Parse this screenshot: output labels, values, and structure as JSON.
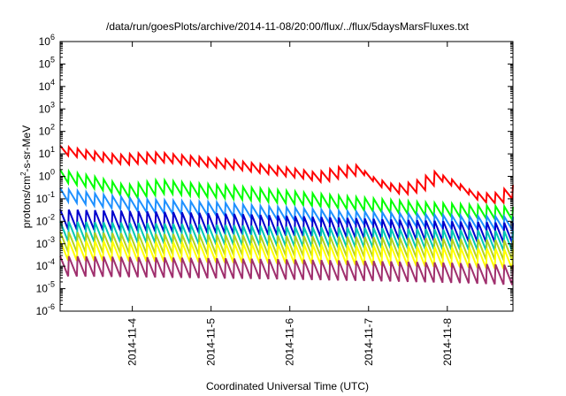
{
  "chart_data": {
    "type": "line",
    "title": "/data/run/goesPlots/archive/2014-11-08/20:00/flux/../flux/5daysMarsFluxes.txt",
    "xlabel": "Coordinated Universal Time (UTC)",
    "ylabel": {
      "pre": "protons/cm",
      "sup": "2",
      "post": "-s-sr-MeV"
    },
    "x_range": [
      "2014-11-03T02:00",
      "2014-11-08T20:00"
    ],
    "x_ticks": [
      "2014-11-4",
      "2014-11-5",
      "2014-11-6",
      "2014-11-7",
      "2014-11-8"
    ],
    "y_scale": "log",
    "ylim": [
      1e-06,
      1000000.0
    ],
    "y_ticks": [
      {
        "base": "10",
        "exp": "-6"
      },
      {
        "base": "10",
        "exp": "-5"
      },
      {
        "base": "10",
        "exp": "-4"
      },
      {
        "base": "10",
        "exp": "-3"
      },
      {
        "base": "10",
        "exp": "-2"
      },
      {
        "base": "10",
        "exp": "-1"
      },
      {
        "base": "10",
        "exp": "0"
      },
      {
        "base": "10",
        "exp": "1"
      },
      {
        "base": "10",
        "exp": "2"
      },
      {
        "base": "10",
        "exp": "3"
      },
      {
        "base": "10",
        "exp": "4"
      },
      {
        "base": "10",
        "exp": "5"
      },
      {
        "base": "10",
        "exp": "6"
      }
    ],
    "grid": false,
    "legend": "none",
    "series": [
      {
        "color": "#ff0000",
        "x": [
          "2014-11-03T02:00",
          "2014-11-03T08:00",
          "2014-11-03T14:00",
          "2014-11-03T20:00",
          "2014-11-04T02:00",
          "2014-11-04T08:00",
          "2014-11-04T14:00",
          "2014-11-04T20:00",
          "2014-11-05T02:00",
          "2014-11-05T08:00",
          "2014-11-05T14:00",
          "2014-11-05T20:00",
          "2014-11-06T02:00",
          "2014-11-06T08:00",
          "2014-11-06T14:00",
          "2014-11-06T20:00",
          "2014-11-07T02:00",
          "2014-11-07T08:00",
          "2014-11-07T14:00",
          "2014-11-07T20:00",
          "2014-11-08T02:00",
          "2014-11-08T08:00",
          "2014-11-08T14:00",
          "2014-11-08T20:00"
        ],
        "y": [
          14,
          10,
          7,
          5.5,
          6.5,
          7,
          5.5,
          4.5,
          3.8,
          3,
          2.2,
          1.7,
          1.3,
          0.9,
          1.5,
          2,
          0.5,
          0.25,
          0.35,
          1,
          0.4,
          0.12,
          0.1,
          0.25
        ]
      },
      {
        "color": "#00ff00",
        "x": [
          "2014-11-03T02:00",
          "2014-11-03T12:00",
          "2014-11-03T22:00",
          "2014-11-04T08:00",
          "2014-11-04T18:00",
          "2014-11-05T04:00",
          "2014-11-05T14:00",
          "2014-11-06T00:00",
          "2014-11-06T10:00",
          "2014-11-06T20:00",
          "2014-11-07T06:00",
          "2014-11-07T16:00",
          "2014-11-08T02:00",
          "2014-11-08T12:00",
          "2014-11-08T20:00"
        ],
        "y": [
          1,
          0.5,
          0.2,
          0.35,
          0.25,
          0.2,
          0.15,
          0.11,
          0.08,
          0.06,
          0.045,
          0.035,
          0.03,
          0.025,
          0.022
        ]
      },
      {
        "color": "#1e90ff",
        "x": [
          "2014-11-03T02:00",
          "2014-11-03T14:00",
          "2014-11-04T02:00",
          "2014-11-04T14:00",
          "2014-11-05T02:00",
          "2014-11-05T14:00",
          "2014-11-06T02:00",
          "2014-11-06T14:00",
          "2014-11-07T02:00",
          "2014-11-07T14:00",
          "2014-11-08T02:00",
          "2014-11-08T20:00"
        ],
        "y": [
          0.15,
          0.08,
          0.05,
          0.04,
          0.035,
          0.025,
          0.02,
          0.015,
          0.013,
          0.011,
          0.009,
          0.008
        ]
      },
      {
        "color": "#0000cd",
        "x": [
          "2014-11-03T02:00",
          "2014-11-04T02:00",
          "2014-11-05T02:00",
          "2014-11-06T02:00",
          "2014-11-07T02:00",
          "2014-11-08T02:00",
          "2014-11-08T20:00"
        ],
        "y": [
          0.012,
          0.01,
          0.008,
          0.006,
          0.0045,
          0.0035,
          0.003
        ]
      },
      {
        "color": "#00c8b4",
        "x": [
          "2014-11-03T02:00",
          "2014-11-04T02:00",
          "2014-11-05T02:00",
          "2014-11-06T02:00",
          "2014-11-07T02:00",
          "2014-11-08T02:00",
          "2014-11-08T20:00"
        ],
        "y": [
          0.0035,
          0.003,
          0.0025,
          0.002,
          0.0018,
          0.0015,
          0.0013
        ]
      },
      {
        "color": "#b4d21e",
        "x": [
          "2014-11-03T02:00",
          "2014-11-04T02:00",
          "2014-11-05T02:00",
          "2014-11-06T02:00",
          "2014-11-07T02:00",
          "2014-11-08T02:00",
          "2014-11-08T20:00"
        ],
        "y": [
          0.0012,
          0.001,
          0.0009,
          0.0008,
          0.0007,
          0.0006,
          0.0005
        ]
      },
      {
        "color": "#ffff00",
        "x": [
          "2014-11-03T02:00",
          "2014-11-04T02:00",
          "2014-11-05T02:00",
          "2014-11-06T02:00",
          "2014-11-07T02:00",
          "2014-11-08T02:00",
          "2014-11-08T20:00"
        ],
        "y": [
          0.0005,
          0.00045,
          0.0004,
          0.00035,
          0.0003,
          0.00025,
          0.0002
        ]
      },
      {
        "color": "#a0306e",
        "x": [
          "2014-11-03T02:00",
          "2014-11-04T02:00",
          "2014-11-05T02:00",
          "2014-11-06T02:00",
          "2014-11-07T02:00",
          "2014-11-08T02:00",
          "2014-11-08T20:00"
        ],
        "y": [
          0.0001,
          9e-05,
          8e-05,
          7e-05,
          6e-05,
          5e-05,
          4e-05
        ]
      }
    ]
  }
}
